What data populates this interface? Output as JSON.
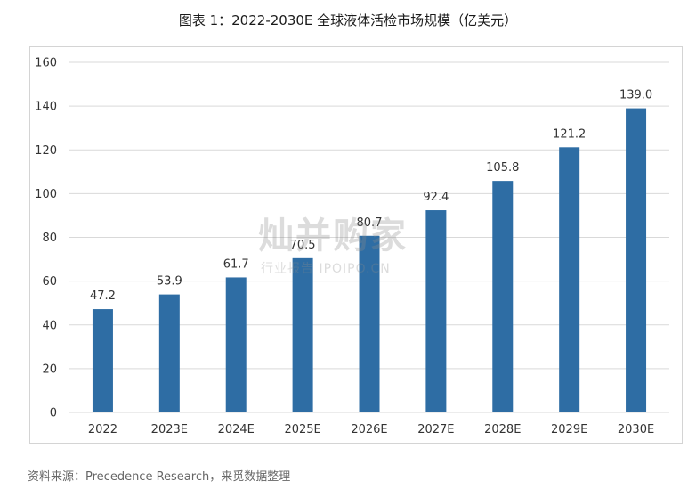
{
  "title": "图表 1：2022-2030E 全球液体活检市场规模（亿美元）",
  "source": "资料来源：Precedence Research，来觅数据整理",
  "watermark": {
    "main": "灿并购家",
    "sub": "行业报告 IPOIPO.CN"
  },
  "colors": {
    "bar": "#2e6da4",
    "grid": "#d9d9d9",
    "text": "#333333"
  },
  "chart_data": {
    "type": "bar",
    "title": "图表 1：2022-2030E 全球液体活检市场规模（亿美元）",
    "xlabel": "",
    "ylabel": "",
    "categories": [
      "2022",
      "2023E",
      "2024E",
      "2025E",
      "2026E",
      "2027E",
      "2028E",
      "2029E",
      "2030E"
    ],
    "values": [
      47.2,
      53.9,
      61.7,
      70.5,
      80.7,
      92.4,
      105.8,
      121.2,
      139.0
    ],
    "value_labels": [
      "47.2",
      "53.9",
      "61.7",
      "70.5",
      "80.7",
      "92.4",
      "105.8",
      "121.2",
      "139.0"
    ],
    "ylim": [
      0,
      160
    ],
    "yticks": [
      "0",
      "20",
      "40",
      "60",
      "80",
      "100",
      "120",
      "140",
      "160"
    ],
    "grid": true,
    "legend": "none"
  }
}
